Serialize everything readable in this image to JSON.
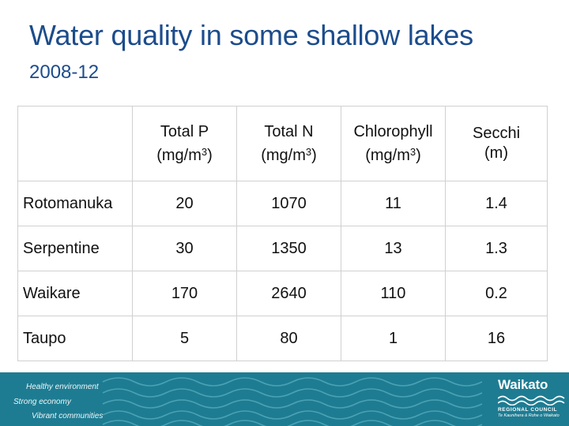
{
  "slide": {
    "title": "Water quality in some shallow lakes",
    "subtitle": "2008-12"
  },
  "table": {
    "columns": [
      {
        "line1": "",
        "line2": "",
        "sup": "",
        "close": ""
      },
      {
        "line1": "Total P",
        "line2": "(mg/m",
        "sup": "3",
        "close": ")"
      },
      {
        "line1": "Total N",
        "line2": "(mg/m",
        "sup": "3",
        "close": ")"
      },
      {
        "line1": "Chlorophyll",
        "line2": "(mg/m",
        "sup": "3",
        "close": ")"
      },
      {
        "line1": "Secchi",
        "line2": "(m)",
        "sup": "",
        "close": ""
      }
    ],
    "rows": [
      {
        "lake": "Rotomanuka",
        "p": "20",
        "n": "1070",
        "chl": "11",
        "secchi": "1.4"
      },
      {
        "lake": "Serpentine",
        "p": "30",
        "n": "1350",
        "chl": "13",
        "secchi": "1.3"
      },
      {
        "lake": "Waikare",
        "p": "170",
        "n": "2640",
        "chl": "110",
        "secchi": "0.2"
      },
      {
        "lake": "Taupo",
        "p": "5",
        "n": "80",
        "chl": "1",
        "secchi": "16"
      }
    ]
  },
  "footer": {
    "taglines": [
      "Healthy environment",
      "Strong economy",
      "Vibrant communities"
    ],
    "logo": {
      "name": "Waikato",
      "org": "REGIONAL COUNCIL",
      "motto": "Te Kaunihera ā Rohe o Waikato"
    },
    "colors": {
      "band": "#1e7c92",
      "wave": "#4fa7b8"
    }
  }
}
